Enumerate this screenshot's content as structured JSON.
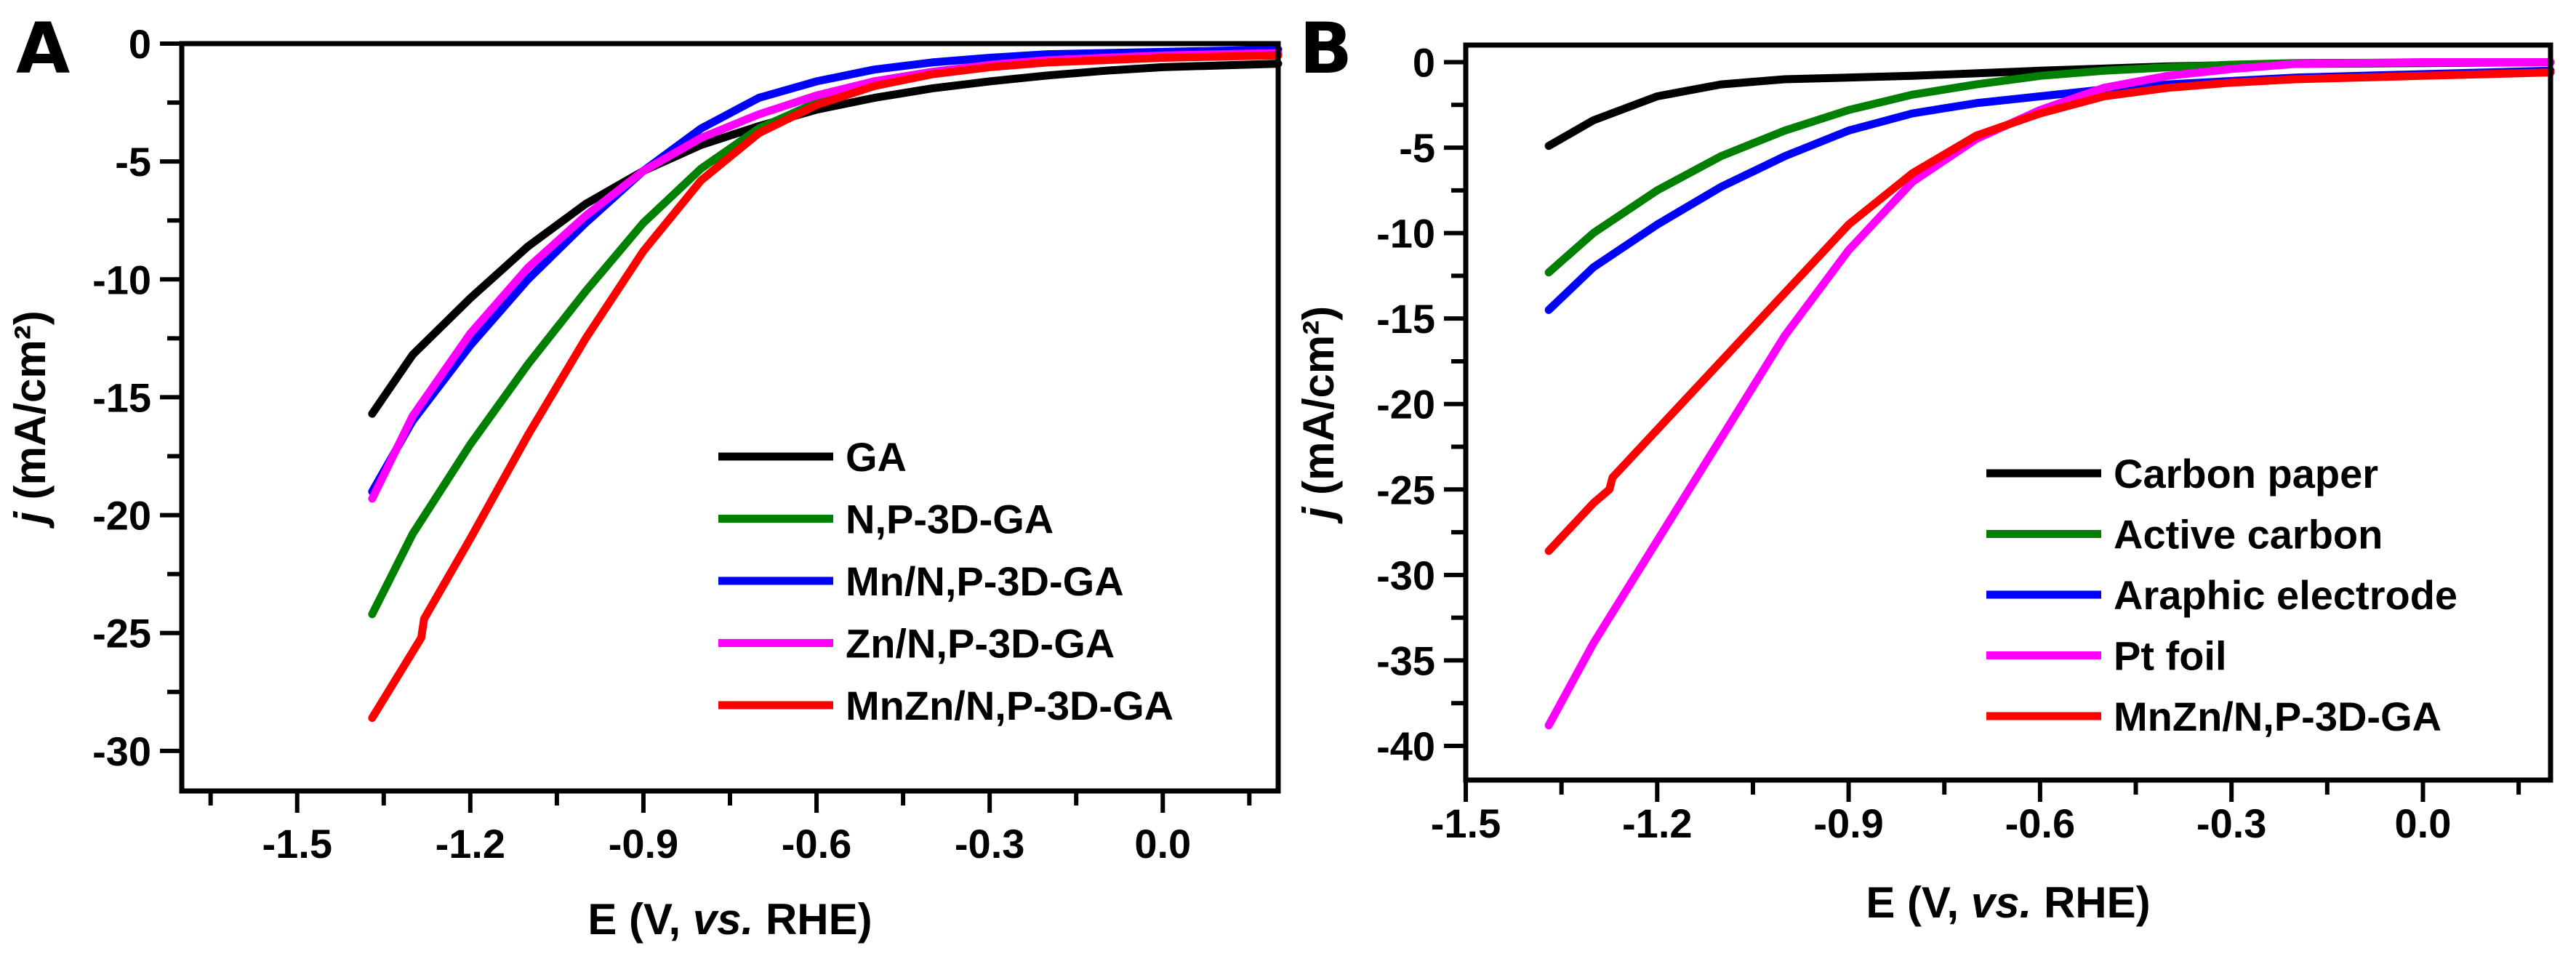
{
  "chart_data": [
    {
      "panel_label": "A",
      "type": "line",
      "xlabel_pre": "E (V, ",
      "xlabel_italic": "vs.",
      "xlabel_post": " RHE)",
      "ylabel_var": "j",
      "ylabel_unit": " (mA/cm²)",
      "xlim": [
        -1.7,
        0.2
      ],
      "ylim": [
        -31.7,
        0
      ],
      "xticks": [
        -1.5,
        -1.2,
        -0.9,
        -0.6,
        -0.3,
        0.0
      ],
      "xtick_labels": [
        "-1.5",
        "-1.2",
        "-0.9",
        "-0.6",
        "-0.3",
        "0.0"
      ],
      "yticks": [
        0,
        -5,
        -10,
        -15,
        -20,
        -25,
        -30
      ],
      "ytick_labels": [
        "0",
        "-5",
        "-10",
        "-15",
        "-20",
        "-25",
        "-30"
      ],
      "grid": false,
      "legend_placement": "bottom-right",
      "series": [
        {
          "name": "GA",
          "color": "#000000",
          "x": [
            -1.37,
            -1.3,
            -1.2,
            -1.1,
            -1.0,
            -0.9,
            -0.8,
            -0.7,
            -0.6,
            -0.5,
            -0.4,
            -0.3,
            -0.2,
            -0.1,
            0.0,
            0.2
          ],
          "y": [
            -15.7,
            -13.2,
            -10.8,
            -8.6,
            -6.8,
            -5.4,
            -4.3,
            -3.5,
            -2.8,
            -2.3,
            -1.9,
            -1.6,
            -1.35,
            -1.15,
            -1.0,
            -0.85
          ]
        },
        {
          "name": "N,P-3D-GA",
          "color": "#008000",
          "x": [
            -1.37,
            -1.3,
            -1.2,
            -1.1,
            -1.0,
            -0.9,
            -0.8,
            -0.7,
            -0.6,
            -0.5,
            -0.4,
            -0.3,
            -0.2,
            0.0,
            0.2
          ],
          "y": [
            -24.2,
            -20.8,
            -17.0,
            -13.6,
            -10.5,
            -7.6,
            -5.3,
            -3.6,
            -2.5,
            -1.6,
            -1.2,
            -0.9,
            -0.75,
            -0.55,
            -0.45
          ]
        },
        {
          "name": "Mn/N,P-3D-GA",
          "color": "#0000ff",
          "x": [
            -1.37,
            -1.3,
            -1.2,
            -1.1,
            -1.0,
            -0.9,
            -0.8,
            -0.7,
            -0.6,
            -0.5,
            -0.4,
            -0.3,
            -0.2,
            0.0,
            0.2
          ],
          "y": [
            -19.0,
            -16.0,
            -12.8,
            -10.0,
            -7.6,
            -5.4,
            -3.6,
            -2.3,
            -1.6,
            -1.1,
            -0.8,
            -0.6,
            -0.45,
            -0.35,
            -0.25
          ]
        },
        {
          "name": "Zn/N,P-3D-GA",
          "color": "#ff00ff",
          "x": [
            -1.37,
            -1.3,
            -1.2,
            -1.1,
            -1.0,
            -0.9,
            -0.8,
            -0.7,
            -0.6,
            -0.5,
            -0.4,
            -0.3,
            -0.2,
            0.0,
            0.2
          ],
          "y": [
            -19.3,
            -15.8,
            -12.3,
            -9.5,
            -7.3,
            -5.4,
            -4.0,
            -3.0,
            -2.2,
            -1.6,
            -1.2,
            -0.9,
            -0.7,
            -0.5,
            -0.4
          ]
        },
        {
          "name": "MnZn/N,P-3D-GA",
          "color": "#ff0000",
          "x": [
            -1.37,
            -1.3,
            -1.285,
            -1.28,
            -1.2,
            -1.1,
            -1.0,
            -0.9,
            -0.8,
            -0.7,
            -0.6,
            -0.5,
            -0.4,
            -0.3,
            -0.2,
            0.0,
            0.2
          ],
          "y": [
            -28.6,
            -25.8,
            -25.2,
            -24.4,
            -21.0,
            -16.6,
            -12.5,
            -8.8,
            -5.8,
            -3.8,
            -2.6,
            -1.8,
            -1.3,
            -1.0,
            -0.8,
            -0.6,
            -0.5
          ]
        }
      ]
    },
    {
      "panel_label": "B",
      "type": "line",
      "xlabel_pre": "E (V, ",
      "xlabel_italic": "vs.",
      "xlabel_post": " RHE)",
      "ylabel_var": "j",
      "ylabel_unit": " (mA/cm²)",
      "xlim": [
        -1.5,
        0.2
      ],
      "ylim": [
        -42,
        1
      ],
      "xticks": [
        -1.5,
        -1.2,
        -0.9,
        -0.6,
        -0.3,
        0.0
      ],
      "xtick_labels": [
        "-1.5",
        "-1.2",
        "-0.9",
        "-0.6",
        "-0.3",
        "0.0"
      ],
      "yticks": [
        0,
        -5,
        -10,
        -15,
        -20,
        -25,
        -30,
        -35,
        -40
      ],
      "ytick_labels": [
        "0",
        "-5",
        "-10",
        "-15",
        "-20",
        "-25",
        "-30",
        "-35",
        "-40"
      ],
      "grid": false,
      "legend_placement": "bottom-right",
      "series": [
        {
          "name": "Carbon paper",
          "color": "#000000",
          "x": [
            -1.37,
            -1.3,
            -1.2,
            -1.1,
            -1.0,
            -0.8,
            -0.6,
            -0.4,
            -0.2,
            0.0,
            0.2
          ],
          "y": [
            -4.9,
            -3.4,
            -2.0,
            -1.3,
            -1.0,
            -0.8,
            -0.5,
            -0.25,
            -0.1,
            -0.05,
            0.0
          ]
        },
        {
          "name": "Active carbon",
          "color": "#008000",
          "x": [
            -1.37,
            -1.3,
            -1.2,
            -1.1,
            -1.0,
            -0.9,
            -0.8,
            -0.7,
            -0.6,
            -0.5,
            -0.4,
            -0.3,
            -0.2,
            0.2
          ],
          "y": [
            -12.3,
            -10.0,
            -7.5,
            -5.5,
            -4.0,
            -2.8,
            -1.9,
            -1.3,
            -0.8,
            -0.5,
            -0.3,
            -0.15,
            -0.05,
            0.0
          ]
        },
        {
          "name": "Araphic electrode",
          "color": "#0000ff",
          "x": [
            -1.37,
            -1.3,
            -1.2,
            -1.1,
            -1.0,
            -0.9,
            -0.8,
            -0.7,
            -0.6,
            -0.5,
            -0.4,
            -0.3,
            -0.2,
            0.0,
            0.2
          ],
          "y": [
            -14.5,
            -12.0,
            -9.5,
            -7.3,
            -5.5,
            -4.0,
            -3.0,
            -2.4,
            -2.0,
            -1.6,
            -1.3,
            -1.1,
            -0.9,
            -0.7,
            -0.5
          ]
        },
        {
          "name": "Pt foil",
          "color": "#ff00ff",
          "x": [
            -1.37,
            -1.3,
            -1.2,
            -1.1,
            -1.0,
            -0.9,
            -0.8,
            -0.7,
            -0.6,
            -0.5,
            -0.4,
            -0.3,
            -0.2,
            0.0,
            0.2
          ],
          "y": [
            -38.8,
            -34.0,
            -28.0,
            -22.0,
            -16.0,
            -11.0,
            -7.0,
            -4.5,
            -2.8,
            -1.5,
            -0.8,
            -0.4,
            -0.1,
            0.0,
            0.0
          ]
        },
        {
          "name": "MnZn/N,P-3D-GA",
          "color": "#ff0000",
          "x": [
            -1.37,
            -1.3,
            -1.275,
            -1.27,
            -1.2,
            -1.1,
            -1.0,
            -0.9,
            -0.8,
            -0.7,
            -0.6,
            -0.5,
            -0.4,
            -0.3,
            -0.2,
            0.0,
            0.2
          ],
          "y": [
            -28.6,
            -25.8,
            -25.0,
            -24.3,
            -21.5,
            -17.5,
            -13.5,
            -9.5,
            -6.5,
            -4.3,
            -3.0,
            -2.0,
            -1.5,
            -1.2,
            -1.0,
            -0.8,
            -0.6
          ]
        }
      ]
    }
  ]
}
